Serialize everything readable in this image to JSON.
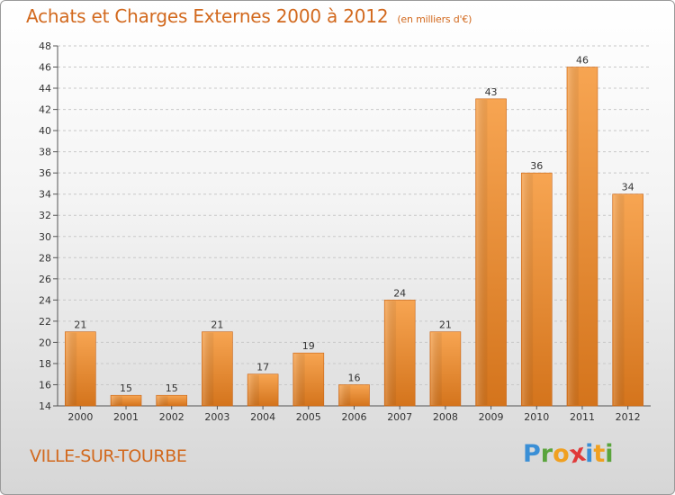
{
  "title": "Achats et Charges Externes 2000 à 2012",
  "unit_note": "(en milliers d'€)",
  "commune": "VILLE-SUR-TOURBE",
  "logo": {
    "letters": [
      "P",
      "r",
      "o",
      "x",
      "i",
      "t",
      "i"
    ],
    "colors": [
      "#3a8fd6",
      "#5aa43c",
      "#f0a020",
      "#e03a3a",
      "#3a8fd6",
      "#f0a020",
      "#5aa43c"
    ]
  },
  "colors": {
    "title": "#d2691e",
    "bar_light": "#f7a552",
    "bar_dark": "#d4741c",
    "grid": "#c8c8c8"
  },
  "chart_data": {
    "type": "bar",
    "categories": [
      "2000",
      "2001",
      "2002",
      "2003",
      "2004",
      "2005",
      "2006",
      "2007",
      "2008",
      "2009",
      "2010",
      "2011",
      "2012"
    ],
    "values": [
      21,
      15,
      15,
      21,
      17,
      19,
      16,
      24,
      21,
      43,
      36,
      46,
      34
    ],
    "data_labels": [
      "21",
      "15",
      "15",
      "21",
      "17",
      "19",
      "16",
      "24",
      "21",
      "43",
      "36",
      "46",
      "34"
    ],
    "ylim": [
      14,
      48
    ],
    "yticks": [
      14,
      16,
      18,
      20,
      22,
      24,
      26,
      28,
      30,
      32,
      34,
      36,
      38,
      40,
      42,
      44,
      46,
      48
    ],
    "grid": true,
    "legend": "none"
  }
}
